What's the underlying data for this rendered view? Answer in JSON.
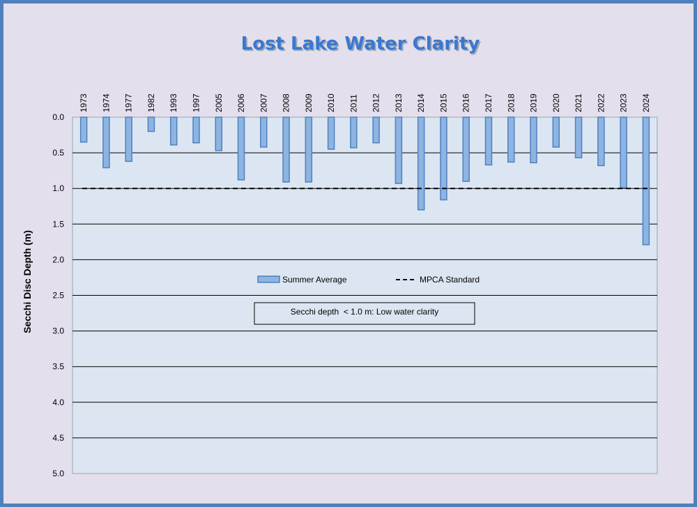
{
  "chart_data": {
    "type": "bar",
    "title": "Lost Lake Water Clarity",
    "ylabel": "Secchi Disc Depth (m)",
    "xlabel": "",
    "ylim": [
      0,
      5
    ],
    "y_axis_inverted": true,
    "y_ticks": [
      "0.0",
      "0.5",
      "1.0",
      "1.5",
      "2.0",
      "2.5",
      "3.0",
      "3.5",
      "4.0",
      "4.5",
      "5.0"
    ],
    "grid": "horizontal",
    "categories": [
      "1973",
      "1974",
      "1977",
      "1982",
      "1993",
      "1997",
      "2005",
      "2006",
      "2007",
      "2008",
      "2009",
      "2010",
      "2011",
      "2012",
      "2013",
      "2014",
      "2015",
      "2016",
      "2017",
      "2018",
      "2019",
      "2020",
      "2021",
      "2022",
      "2023",
      "2024"
    ],
    "series": [
      {
        "name": "Summer Average",
        "values": [
          0.35,
          0.71,
          0.62,
          0.2,
          0.39,
          0.36,
          0.47,
          0.88,
          0.42,
          0.91,
          0.91,
          0.45,
          0.43,
          0.36,
          0.93,
          1.3,
          1.16,
          0.9,
          0.67,
          0.63,
          0.64,
          0.42,
          0.57,
          0.68,
          0.99,
          1.79
        ],
        "color": "#8db4e2"
      }
    ],
    "reference_line": {
      "name": "MPCA Standard",
      "value": 1.0,
      "style": "dashed"
    },
    "annotation": "Secchi depth  < 1.0 m: Low water clarity",
    "legend_position": "center",
    "colors": {
      "background": "#e4dfec",
      "plot_area": "#dce6f2",
      "border": "#4f81bd",
      "bar_fill": "#8db4e2",
      "bar_stroke": "#4f81bd",
      "title": "#3a78d0"
    }
  }
}
